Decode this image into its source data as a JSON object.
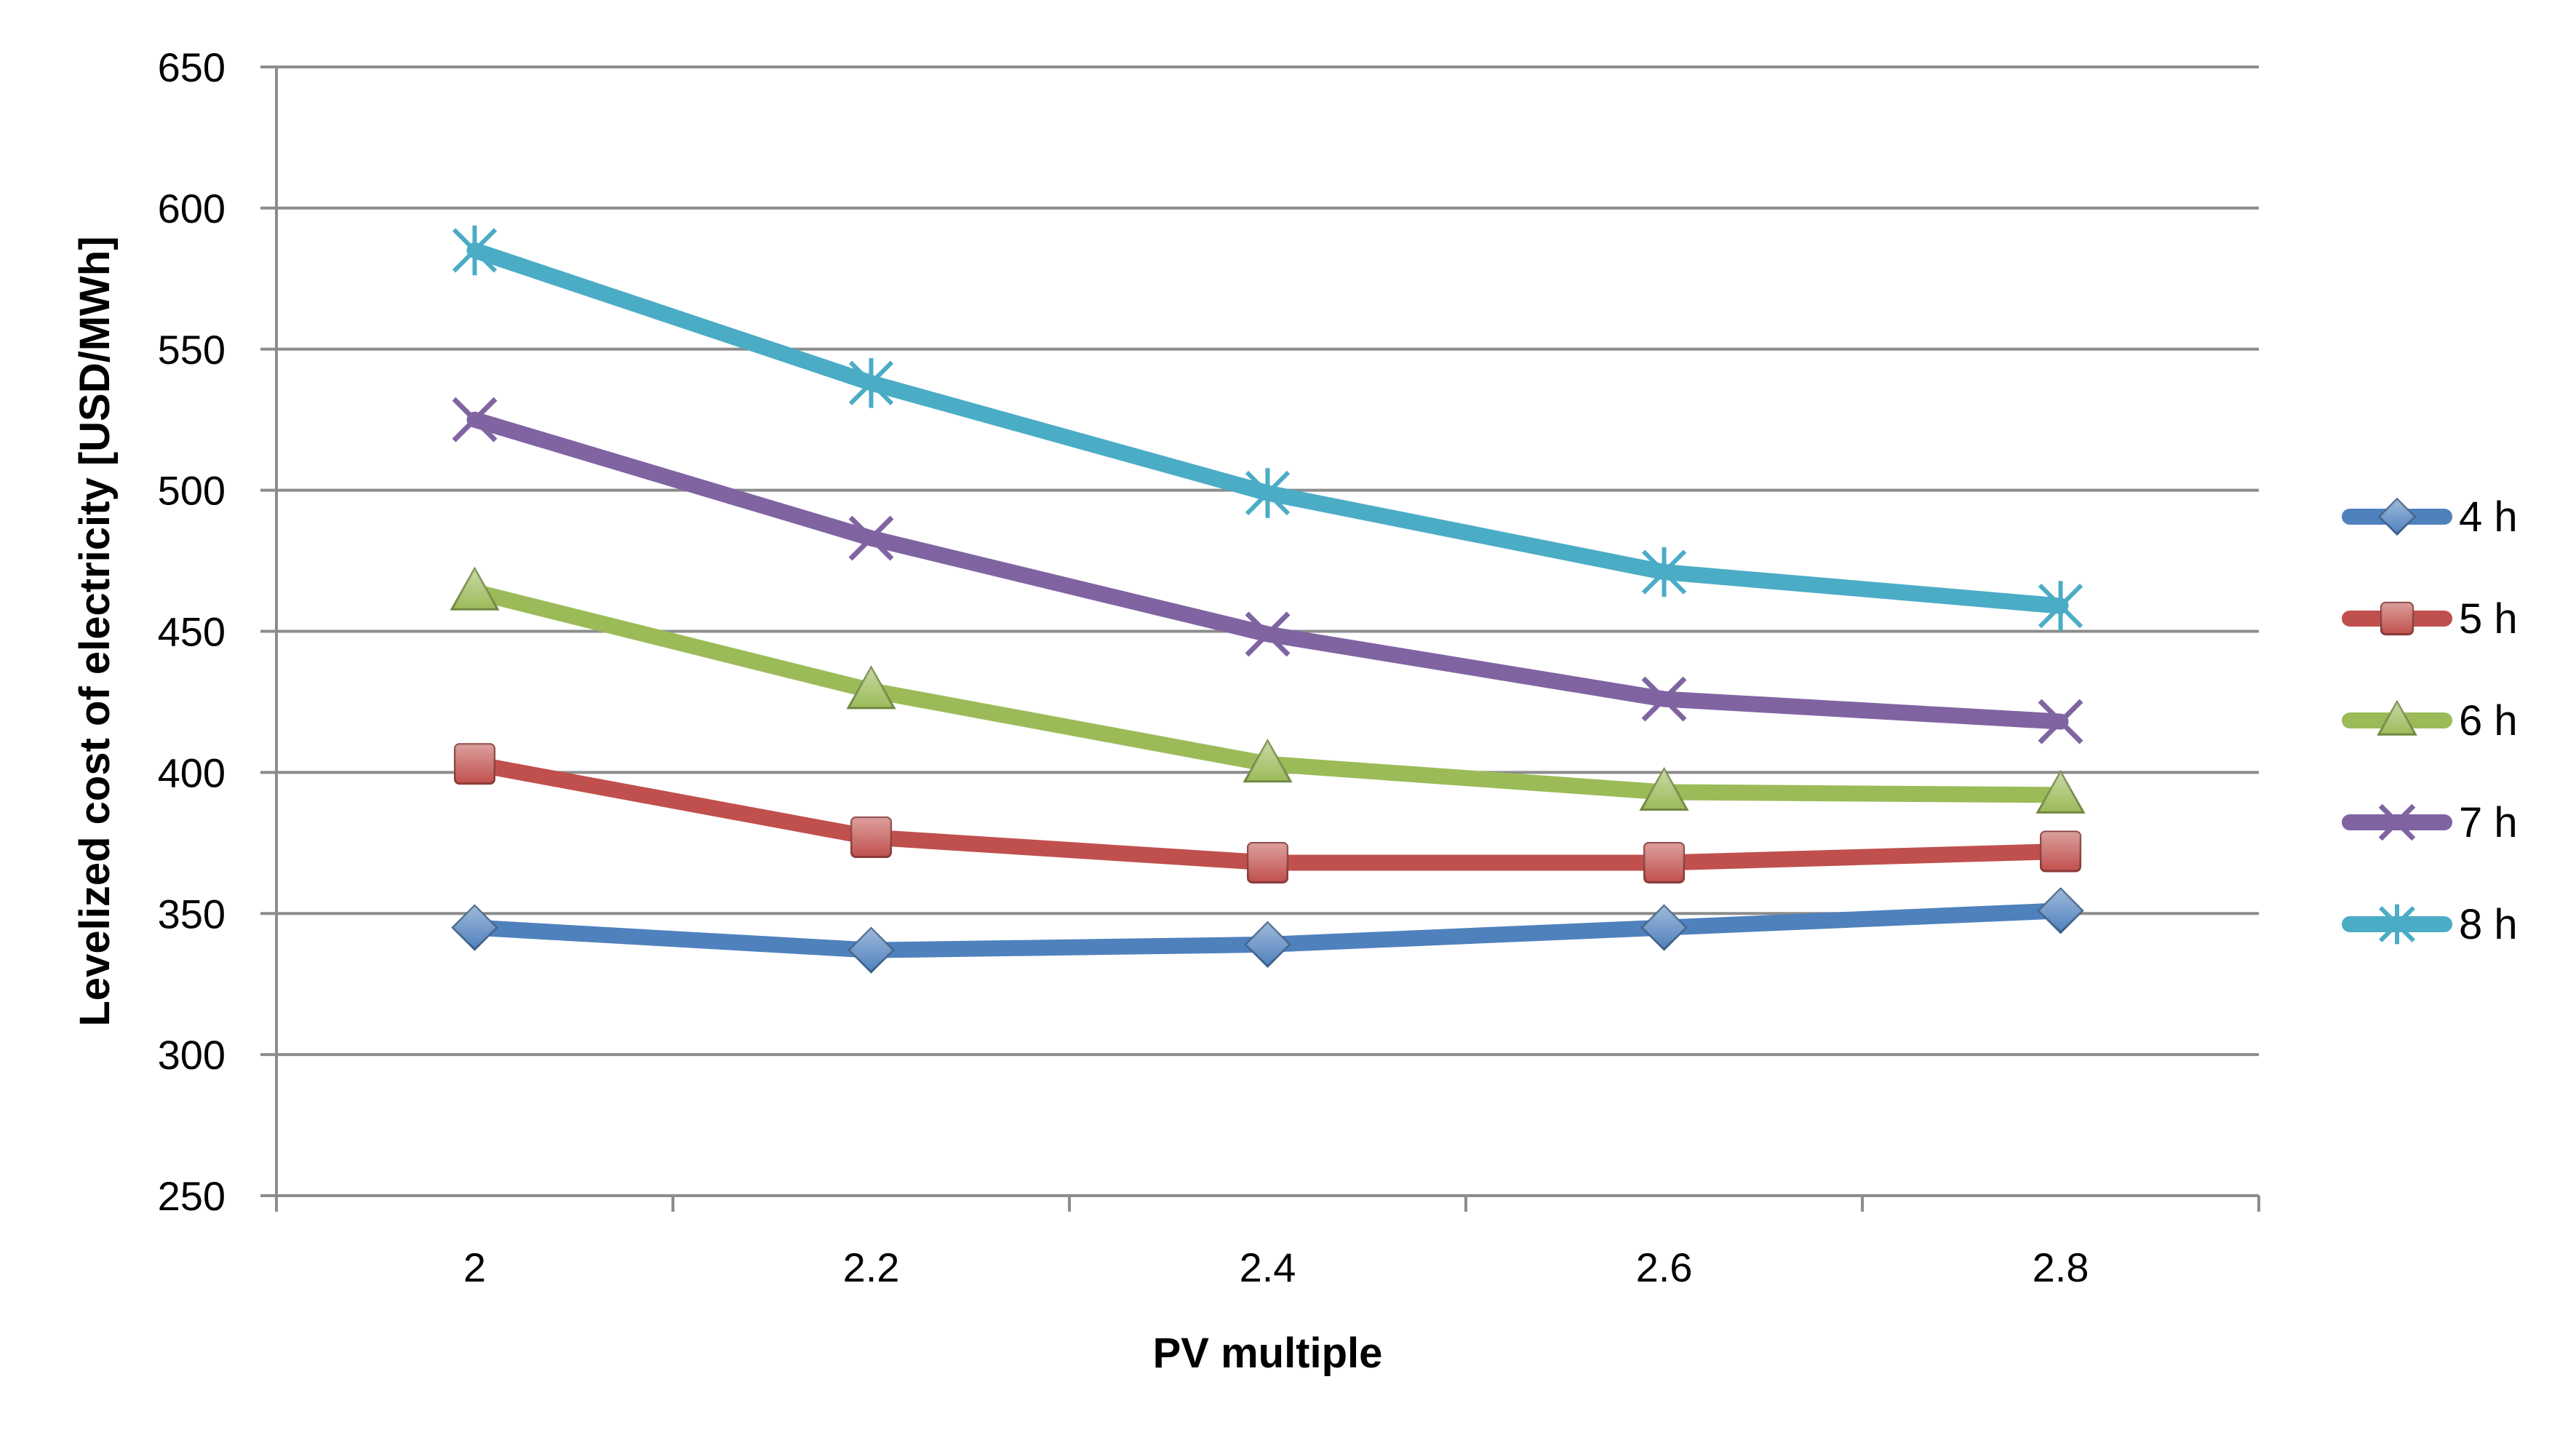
{
  "chart_data": {
    "type": "line",
    "title": "",
    "xlabel": "PV multiple",
    "ylabel": "Levelized cost of electricity [USD/MWh]",
    "x": [
      "2",
      "2.2",
      "2.4",
      "2.6",
      "2.8"
    ],
    "ylim": [
      250,
      650
    ],
    "yticks": [
      "250",
      "300",
      "350",
      "400",
      "450",
      "500",
      "550",
      "600",
      "650"
    ],
    "grid": "horizontal",
    "legend_position": "right",
    "series": [
      {
        "name": "4 h",
        "color": "#4F81BD",
        "marker": "diamond",
        "values": [
          345,
          337,
          339,
          345,
          351
        ]
      },
      {
        "name": "5 h",
        "color": "#C0504D",
        "marker": "square",
        "values": [
          403,
          377,
          368,
          368,
          372
        ]
      },
      {
        "name": "6 h",
        "color": "#9BBB59",
        "marker": "triangle",
        "values": [
          464,
          429,
          403,
          393,
          392
        ]
      },
      {
        "name": "7 h",
        "color": "#8064A2",
        "marker": "x",
        "values": [
          525,
          483,
          449,
          426,
          418
        ]
      },
      {
        "name": "8 h",
        "color": "#4BACC6",
        "marker": "star",
        "values": [
          585,
          538,
          499,
          471,
          459
        ]
      }
    ]
  }
}
